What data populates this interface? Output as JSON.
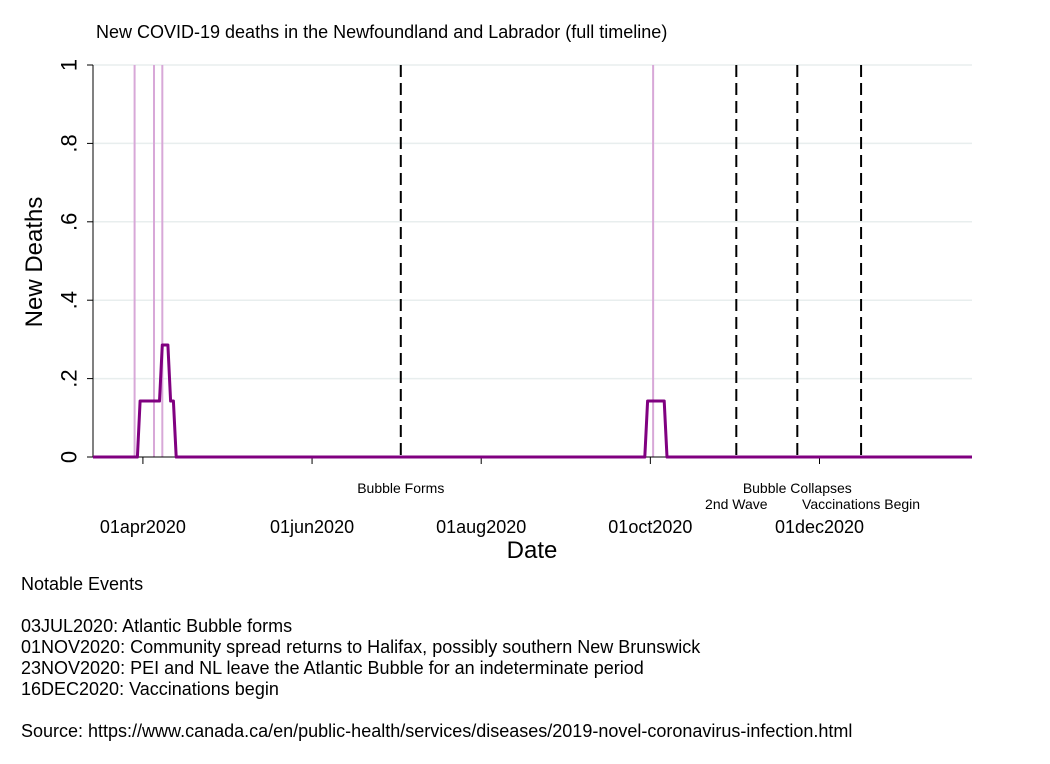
{
  "chart_data": {
    "type": "line",
    "title": "New COVID-19 deaths in the Newfoundland and Labrador (full timeline)",
    "xlabel": "Date",
    "ylabel": "New Deaths",
    "xlim": [
      "2020-03-14",
      "2021-01-25"
    ],
    "ylim": [
      0,
      1
    ],
    "y_ticks": [
      {
        "value": 0,
        "label": "0"
      },
      {
        "value": 0.2,
        "label": ".2"
      },
      {
        "value": 0.4,
        "label": ".4"
      },
      {
        "value": 0.6,
        "label": ".6"
      },
      {
        "value": 0.8,
        "label": ".8"
      },
      {
        "value": 1,
        "label": "1"
      }
    ],
    "x_ticks": [
      {
        "date": "2020-04-01",
        "label": "01apr2020"
      },
      {
        "date": "2020-06-01",
        "label": "01jun2020"
      },
      {
        "date": "2020-08-01",
        "label": "01aug2020"
      },
      {
        "date": "2020-10-01",
        "label": "01oct2020"
      },
      {
        "date": "2020-12-01",
        "label": "01dec2020"
      }
    ],
    "grid": true,
    "series": [
      {
        "color": "#800080",
        "points": [
          [
            "2020-03-14",
            0
          ],
          [
            "2020-03-30",
            0
          ],
          [
            "2020-03-31",
            0.1429
          ],
          [
            "2020-04-07",
            0.1429
          ],
          [
            "2020-04-08",
            0.2857
          ],
          [
            "2020-04-10",
            0.2857
          ],
          [
            "2020-04-11",
            0.1429
          ],
          [
            "2020-04-12",
            0.1429
          ],
          [
            "2020-04-13",
            0
          ],
          [
            "2020-09-29",
            0
          ],
          [
            "2020-09-30",
            0.1429
          ],
          [
            "2020-10-06",
            0.1429
          ],
          [
            "2020-10-07",
            0
          ],
          [
            "2021-01-25",
            0
          ]
        ]
      }
    ],
    "death_event_lines": {
      "color": "#d8a8d8",
      "dates": [
        "2020-03-29",
        "2020-04-05",
        "2020-04-08",
        "2020-10-02"
      ]
    },
    "event_lines": [
      {
        "date": "2020-07-03",
        "label": "Bubble Forms",
        "row": 1
      },
      {
        "date": "2020-11-01",
        "label": "2nd Wave",
        "row": 2
      },
      {
        "date": "2020-11-23",
        "label": "Bubble Collapses",
        "row": 1
      },
      {
        "date": "2020-12-16",
        "label": "Vaccinations Begin",
        "row": 2
      }
    ]
  },
  "notes": {
    "heading": "Notable Events",
    "lines": [
      "03JUL2020: Atlantic Bubble forms",
      "01NOV2020: Community spread returns to Halifax, possibly southern New Brunswick",
      "23NOV2020: PEI and NL leave the Atlantic Bubble for an indeterminate period",
      "16DEC2020: Vaccinations begin"
    ],
    "source": "Source: https://www.canada.ca/en/public-health/services/diseases/2019-novel-coronavirus-infection.html"
  }
}
